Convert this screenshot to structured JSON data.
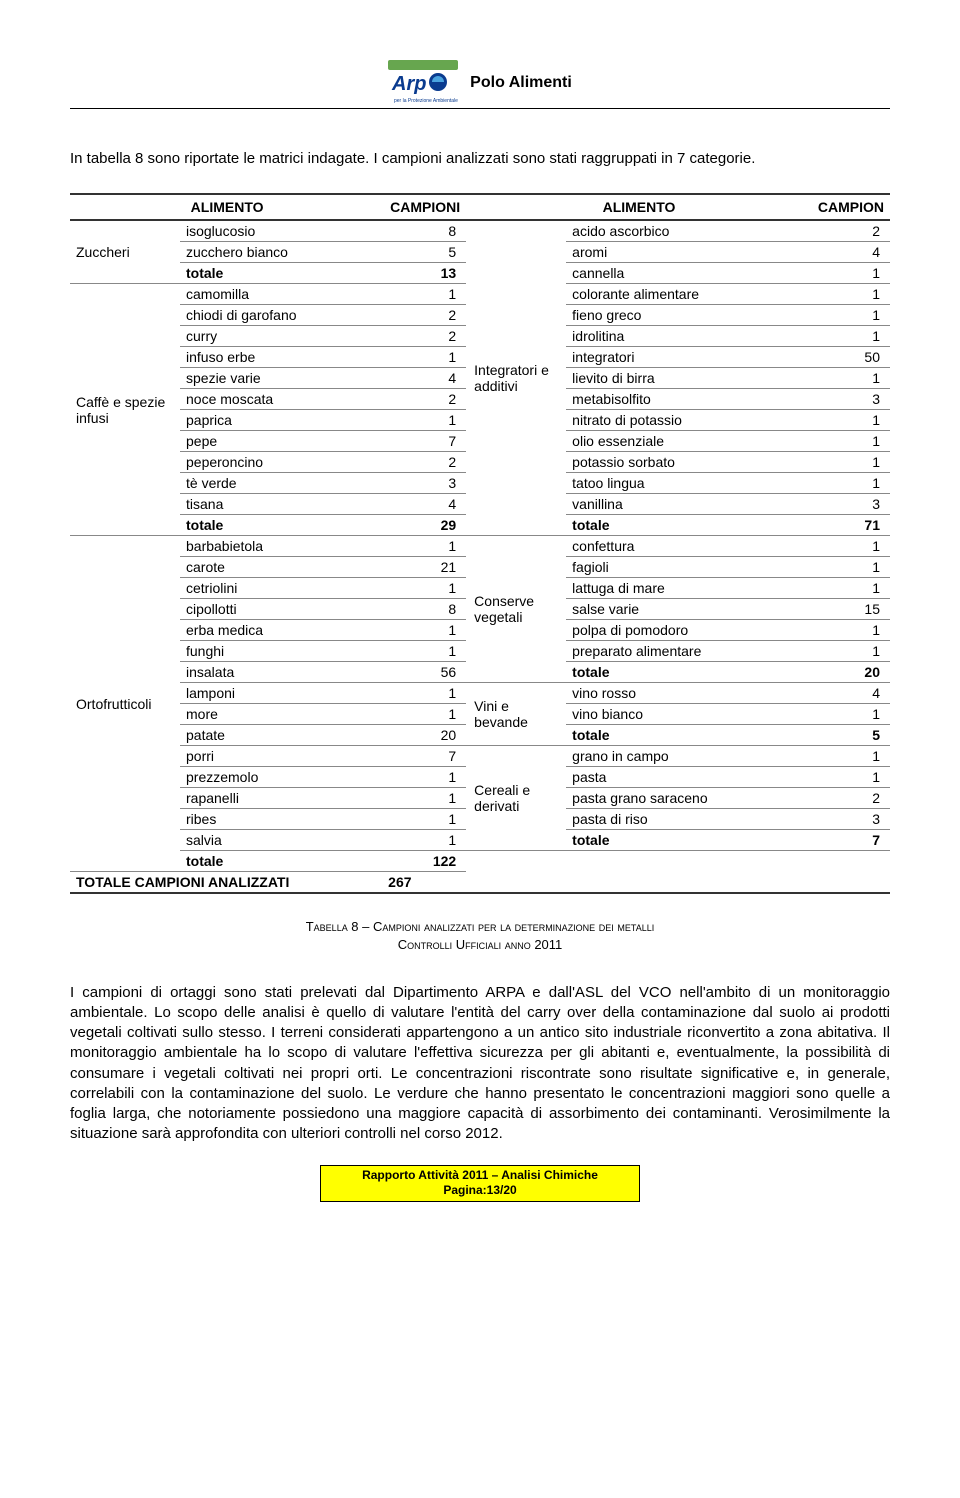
{
  "header": {
    "title": "Polo Alimenti",
    "logo_text": "Arpa"
  },
  "intro": "In tabella 8 sono riportate le matrici indagate. I campioni analizzati sono stati raggruppati in 7 categorie.",
  "tableHeaders": {
    "alimento1": "ALIMENTO",
    "campioni1": "CAMPIONI",
    "alimento2": "ALIMENTO",
    "campion2": "CAMPION"
  },
  "leftGroups": [
    {
      "name": "Zuccheri",
      "rows": [
        {
          "label": "isoglucosio",
          "val": 8
        },
        {
          "label": "zucchero bianco",
          "val": 5
        },
        {
          "label": "totale",
          "val": 13,
          "total": true
        }
      ]
    },
    {
      "name": "Caffè e spezie infusi",
      "rows": [
        {
          "label": "camomilla",
          "val": 1
        },
        {
          "label": "chiodi di garofano",
          "val": 2
        },
        {
          "label": "curry",
          "val": 2
        },
        {
          "label": "infuso erbe",
          "val": 1
        },
        {
          "label": "spezie varie",
          "val": 4
        },
        {
          "label": "noce moscata",
          "val": 2
        },
        {
          "label": "paprica",
          "val": 1
        },
        {
          "label": "pepe",
          "val": 7
        },
        {
          "label": "peperoncino",
          "val": 2
        },
        {
          "label": "tè verde",
          "val": 3
        },
        {
          "label": "tisana",
          "val": 4
        },
        {
          "label": "totale",
          "val": 29,
          "total": true
        }
      ]
    },
    {
      "name": "Ortofrutticoli",
      "rows": [
        {
          "label": "barbabietola",
          "val": 1
        },
        {
          "label": "carote",
          "val": 21
        },
        {
          "label": "cetriolini",
          "val": 1
        },
        {
          "label": "cipollotti",
          "val": 8
        },
        {
          "label": "erba medica",
          "val": 1
        },
        {
          "label": "funghi",
          "val": 1
        },
        {
          "label": "insalata",
          "val": 56
        },
        {
          "label": "lamponi",
          "val": 1
        },
        {
          "label": "more",
          "val": 1
        },
        {
          "label": "patate",
          "val": 20
        },
        {
          "label": "porri",
          "val": 7
        },
        {
          "label": "prezzemolo",
          "val": 1
        },
        {
          "label": "rapanelli",
          "val": 1
        },
        {
          "label": "ribes",
          "val": 1
        },
        {
          "label": "salvia",
          "val": 1
        },
        {
          "label": "totale",
          "val": 122,
          "total": true
        }
      ]
    }
  ],
  "grandTotal": {
    "label": "TOTALE CAMPIONI ANALIZZATI",
    "val": 267
  },
  "rightGroups": [
    {
      "name": "Integratori e additivi",
      "span": 15,
      "rows": [
        {
          "label": "acido ascorbico",
          "val": 2
        },
        {
          "label": "aromi",
          "val": 4
        },
        {
          "label": "cannella",
          "val": 1
        },
        {
          "label": "colorante alimentare",
          "val": 1
        },
        {
          "label": "fieno greco",
          "val": 1
        },
        {
          "label": "idrolitina",
          "val": 1
        },
        {
          "label": "integratori",
          "val": 50
        },
        {
          "label": "lievito di birra",
          "val": 1
        },
        {
          "label": "metabisolfito",
          "val": 3
        },
        {
          "label": "nitrato di potassio",
          "val": 1
        },
        {
          "label": "olio essenziale",
          "val": 1
        },
        {
          "label": "potassio sorbato",
          "val": 1
        },
        {
          "label": "tatoo lingua",
          "val": 1
        },
        {
          "label": "vanillina",
          "val": 3
        },
        {
          "label": "totale",
          "val": 71,
          "total": true
        }
      ]
    },
    {
      "name": "Conserve vegetali",
      "span": 7,
      "rows": [
        {
          "label": "confettura",
          "val": 1
        },
        {
          "label": "fagioli",
          "val": 1
        },
        {
          "label": "lattuga di mare",
          "val": 1
        },
        {
          "label": "salse varie",
          "val": 15
        },
        {
          "label": "polpa di pomodoro",
          "val": 1
        },
        {
          "label": "preparato alimentare",
          "val": 1
        },
        {
          "label": "totale",
          "val": 20,
          "total": true
        }
      ]
    },
    {
      "name": "Vini e bevande",
      "span": 3,
      "rows": [
        {
          "label": "vino rosso",
          "val": 4
        },
        {
          "label": "vino bianco",
          "val": 1
        },
        {
          "label": "totale",
          "val": 5,
          "total": true
        }
      ]
    },
    {
      "name": "Cereali e derivati",
      "span": 5,
      "rows": [
        {
          "label": "grano in campo",
          "val": 1
        },
        {
          "label": "pasta",
          "val": 1
        },
        {
          "label": "pasta grano saraceno",
          "val": 2
        },
        {
          "label": "pasta di riso",
          "val": 3
        },
        {
          "label": "totale",
          "val": 7,
          "total": true
        }
      ]
    }
  ],
  "caption": {
    "line1": "Tabella 8 – Campioni analizzati per la determinazione dei metalli",
    "line2": "Controlli Ufficiali anno 2011"
  },
  "bodyPara": "I campioni di ortaggi sono stati prelevati dal Dipartimento ARPA e dall'ASL del VCO nell'ambito di un monitoraggio ambientale. Lo scopo delle analisi è quello di valutare l'entità del carry over della contaminazione dal suolo ai prodotti vegetali coltivati sullo stesso. I terreni considerati appartengono a un antico sito industriale riconvertito a zona abitativa. Il monitoraggio ambientale ha lo scopo di valutare l'effettiva sicurezza per gli abitanti e, eventualmente, la possibilità di consumare i vegetali coltivati nei propri orti. Le concentrazioni riscontrate sono risultate significative e, in generale, correlabili con la contaminazione del suolo. Le verdure che hanno presentato le concentrazioni maggiori sono quelle a foglia larga, che notoriamente possiedono una maggiore capacità di assorbimento dei contaminanti. Verosimilmente la situazione sarà approfondita con ulteriori controlli nel corso 2012.",
  "footer": {
    "line1": "Rapporto Attività 2011 – Analisi Chimiche",
    "line2": "Pagina:13/20"
  },
  "style": {
    "highlight_color": "#ffff00",
    "border_color": "#333333",
    "row_border_color": "#888888"
  }
}
